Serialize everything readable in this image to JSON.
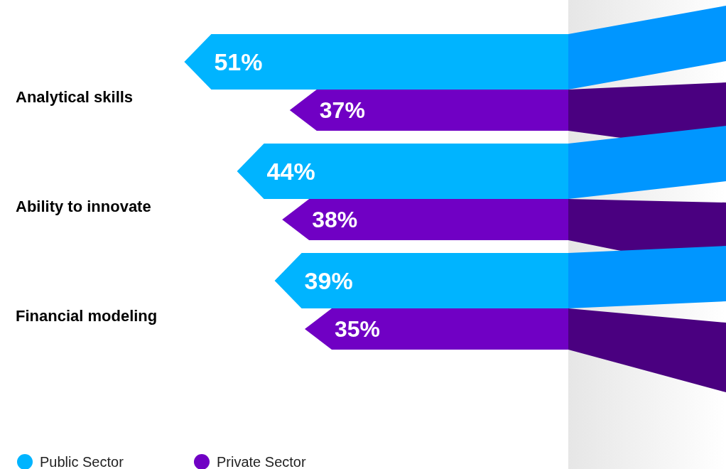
{
  "chart_data": {
    "type": "bar",
    "orientation": "horizontal",
    "categories": [
      "Analytical skills",
      "Ability to innovate",
      "Financial modeling"
    ],
    "series": [
      {
        "name": "Public Sector",
        "color": "#00b4ff",
        "values": [
          51,
          44,
          39
        ],
        "value_labels": [
          "51%",
          "44%",
          "39%"
        ]
      },
      {
        "name": "Private Sector",
        "color": "#7000c4",
        "values": [
          37,
          38,
          35
        ],
        "value_labels": [
          "37%",
          "38%",
          "35%"
        ]
      }
    ],
    "legend": "bottom left"
  }
}
